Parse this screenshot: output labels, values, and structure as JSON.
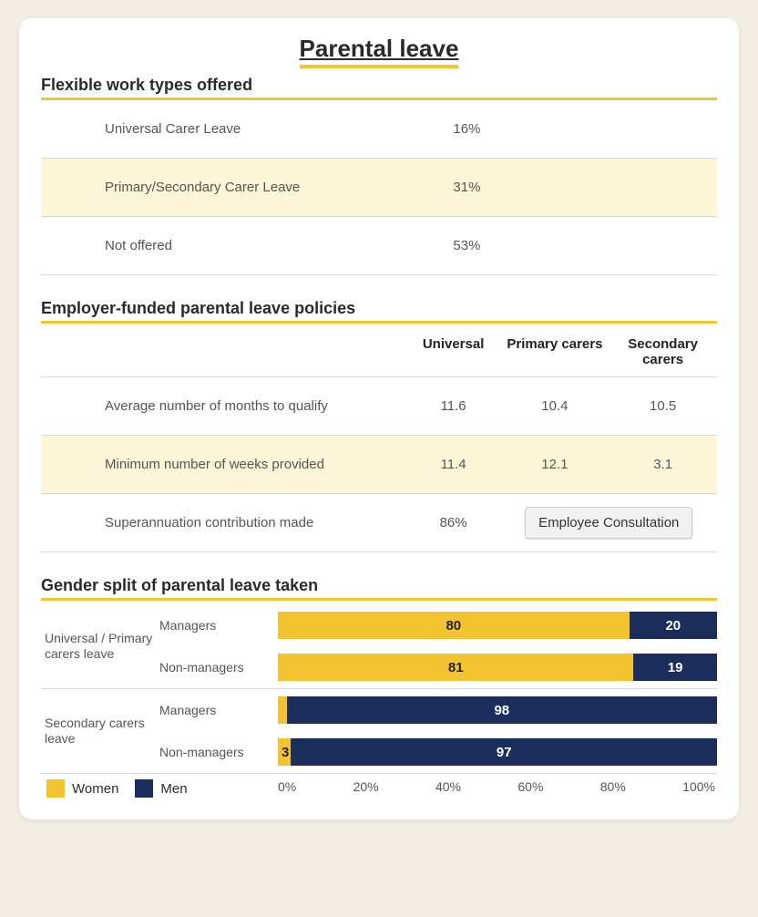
{
  "colors": {
    "accent_yellow": "#f4c430",
    "navy": "#1b2d5b",
    "stripe_bg": "#fcf5d8",
    "page_bg": "#f2eee4",
    "card_bg": "#ffffff",
    "divider": "#d9d9d9",
    "text_main": "#2a2a2a",
    "text_muted": "#555555"
  },
  "title": "Parental leave",
  "section1": {
    "title": "Flexible work types offered",
    "rows": [
      {
        "label": "Universal Carer Leave",
        "value": "16%"
      },
      {
        "label": "Primary/Secondary Carer Leave",
        "value": "31%"
      },
      {
        "label": "Not offered",
        "value": "53%"
      }
    ]
  },
  "section2": {
    "title": "Employer-funded parental leave policies",
    "headers": {
      "c1": "Universal",
      "c2": "Primary carers",
      "c3": "Secondary carers"
    },
    "rows": [
      {
        "label": "Average number of months to qualify",
        "v1": "11.6",
        "v2": "10.4",
        "v3": "10.5"
      },
      {
        "label": "Minimum number of weeks provided",
        "v1": "11.4",
        "v2": "12.1",
        "v3": "3.1"
      },
      {
        "label": "Superannuation contribution made",
        "v1": "86%",
        "v2": "",
        "v3": ""
      }
    ],
    "button_label": "Employee Consultation"
  },
  "section3": {
    "title": "Gender split of parental leave taken",
    "legend": {
      "women": "Women",
      "men": "Men"
    },
    "axis_ticks": [
      "0%",
      "20%",
      "40%",
      "60%",
      "80%",
      "100%"
    ],
    "groups": [
      {
        "label": "Universal / Primary carers leave",
        "bars": [
          {
            "row_label": "Managers",
            "women": 80,
            "men": 20
          },
          {
            "row_label": "Non-managers",
            "women": 81,
            "men": 19
          }
        ]
      },
      {
        "label": "Secondary carers leave",
        "bars": [
          {
            "row_label": "Managers",
            "women": 2,
            "men": 98,
            "women_label": ""
          },
          {
            "row_label": "Non-managers",
            "women": 3,
            "men": 97
          }
        ]
      }
    ]
  }
}
